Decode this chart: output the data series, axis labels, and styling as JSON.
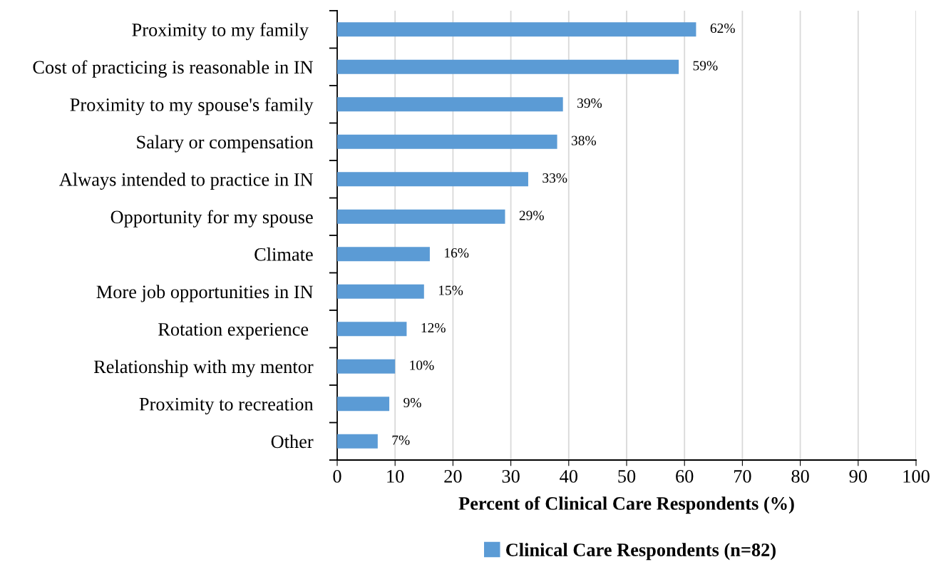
{
  "chart_data": {
    "type": "bar",
    "orientation": "horizontal",
    "xlabel": "Percent of Clinical Care Respondents (%)",
    "categories": [
      "Proximity to my family ",
      "Cost of practicing is reasonable in IN",
      "Proximity to my spouse's family",
      "Salary or compensation",
      "Always intended to practice in IN",
      "Opportunity for my spouse",
      "Climate",
      "More job opportunities in IN",
      "Rotation experience ",
      "Relationship with my mentor",
      "Proximity to recreation",
      "Other"
    ],
    "series": [
      {
        "name": "Clinical Care Respondents (n=82)",
        "color": "#5b9bd5",
        "values": [
          62,
          59,
          39,
          38,
          33,
          29,
          16,
          15,
          12,
          10,
          9,
          7
        ],
        "value_labels": [
          "62%",
          "59%",
          "39%",
          "38%",
          "33%",
          "29%",
          "16%",
          "15%",
          "12%",
          "10%",
          "9%",
          "7%"
        ]
      }
    ],
    "xlim": [
      0,
      100
    ],
    "xticks": [
      0,
      10,
      20,
      30,
      40,
      50,
      60,
      70,
      80,
      90,
      100
    ],
    "grid": "x",
    "legend": "bottom"
  }
}
